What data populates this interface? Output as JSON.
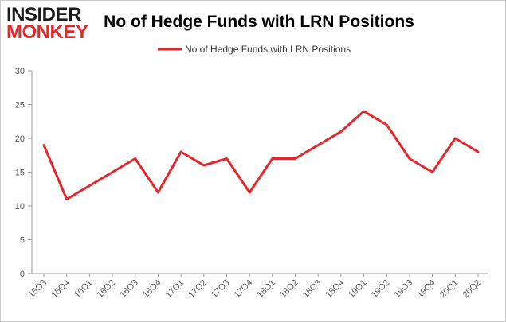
{
  "logo": {
    "line1": "INSIDER",
    "line2": "MONKEY"
  },
  "colors": {
    "series": "#e8262a",
    "logo_dark": "#1b1b1b",
    "logo_red": "#e8262a",
    "axis": "#9a9a9a",
    "border": "#c8c8c8"
  },
  "chart_data": {
    "type": "line",
    "title": "No of Hedge Funds with LRN Positions",
    "xlabel": "",
    "ylabel": "",
    "ylim": [
      0,
      30
    ],
    "yticks": [
      0,
      5,
      10,
      15,
      20,
      25,
      30
    ],
    "grid": false,
    "legend_position": "top-center",
    "categories": [
      "15Q3",
      "15Q4",
      "16Q1",
      "16Q2",
      "16Q3",
      "16Q4",
      "17Q1",
      "17Q2",
      "17Q3",
      "17Q4",
      "18Q1",
      "18Q2",
      "18Q3",
      "18Q4",
      "19Q1",
      "19Q2",
      "19Q3",
      "19Q4",
      "20Q1",
      "20Q2"
    ],
    "series": [
      {
        "name": "No of Hedge Funds with LRN Positions",
        "color": "#e8262a",
        "values": [
          19,
          11,
          13,
          15,
          17,
          12,
          18,
          16,
          17,
          12,
          17,
          17,
          19,
          21,
          24,
          22,
          17,
          15,
          20,
          18
        ]
      }
    ]
  }
}
